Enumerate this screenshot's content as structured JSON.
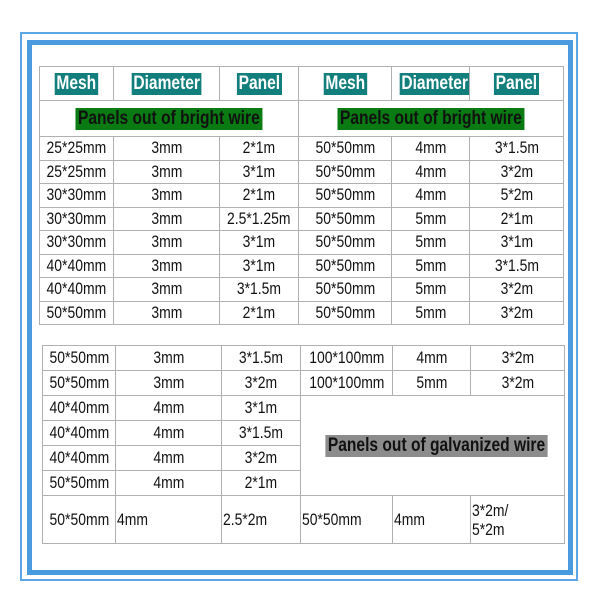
{
  "headers": [
    "Mesh",
    "Diameter",
    "Panel",
    "Mesh",
    "Diameter",
    "Panel"
  ],
  "banners": {
    "bright_left": "Panels out of bright wire",
    "bright_right": "Panels out of bright wire",
    "galvanized": "Panels out of galvanized wire"
  },
  "table1_rows": [
    [
      "25*25mm",
      "3mm",
      "2*1m",
      "50*50mm",
      "4mm",
      "3*1.5m"
    ],
    [
      "25*25mm",
      "3mm",
      "3*1m",
      "50*50mm",
      "4mm",
      "3*2m"
    ],
    [
      "30*30mm",
      "3mm",
      "2*1m",
      "50*50mm",
      "4mm",
      "5*2m"
    ],
    [
      "30*30mm",
      "3mm",
      "2.5*1.25m",
      "50*50mm",
      "5mm",
      "2*1m"
    ],
    [
      "30*30mm",
      "3mm",
      "3*1m",
      "50*50mm",
      "5mm",
      "3*1m"
    ],
    [
      "40*40mm",
      "3mm",
      "3*1m",
      "50*50mm",
      "5mm",
      "3*1.5m"
    ],
    [
      "40*40mm",
      "3mm",
      "3*1.5m",
      "50*50mm",
      "5mm",
      "3*2m"
    ],
    [
      "50*50mm",
      "3mm",
      "2*1m",
      "50*50mm",
      "5mm",
      "3*2m"
    ]
  ],
  "table2_rows": [
    [
      "50*50mm",
      "3mm",
      "3*1.5m",
      "100*100mm",
      "4mm",
      "3*2m"
    ],
    [
      "50*50mm",
      "3mm",
      "3*2m",
      "100*100mm",
      "5mm",
      "3*2m"
    ],
    [
      "40*40mm",
      "4mm",
      "3*1m"
    ],
    [
      "40*40mm",
      "4mm",
      "3*1.5m"
    ],
    [
      "40*40mm",
      "4mm",
      "3*2m"
    ],
    [
      "50*50mm",
      "4mm",
      "2*1m"
    ]
  ],
  "table2_last": [
    "50*50mm",
    "4mm",
    "2.5*2m",
    "50*50mm",
    "4mm",
    "3*2m/",
    "5*2m"
  ],
  "colors": {
    "frame": "#4a9ae0",
    "header_bg": "#127f7c",
    "bright_banner_bg": "#0a7a12",
    "galvanized_banner_bg": "#8c8c8c"
  }
}
